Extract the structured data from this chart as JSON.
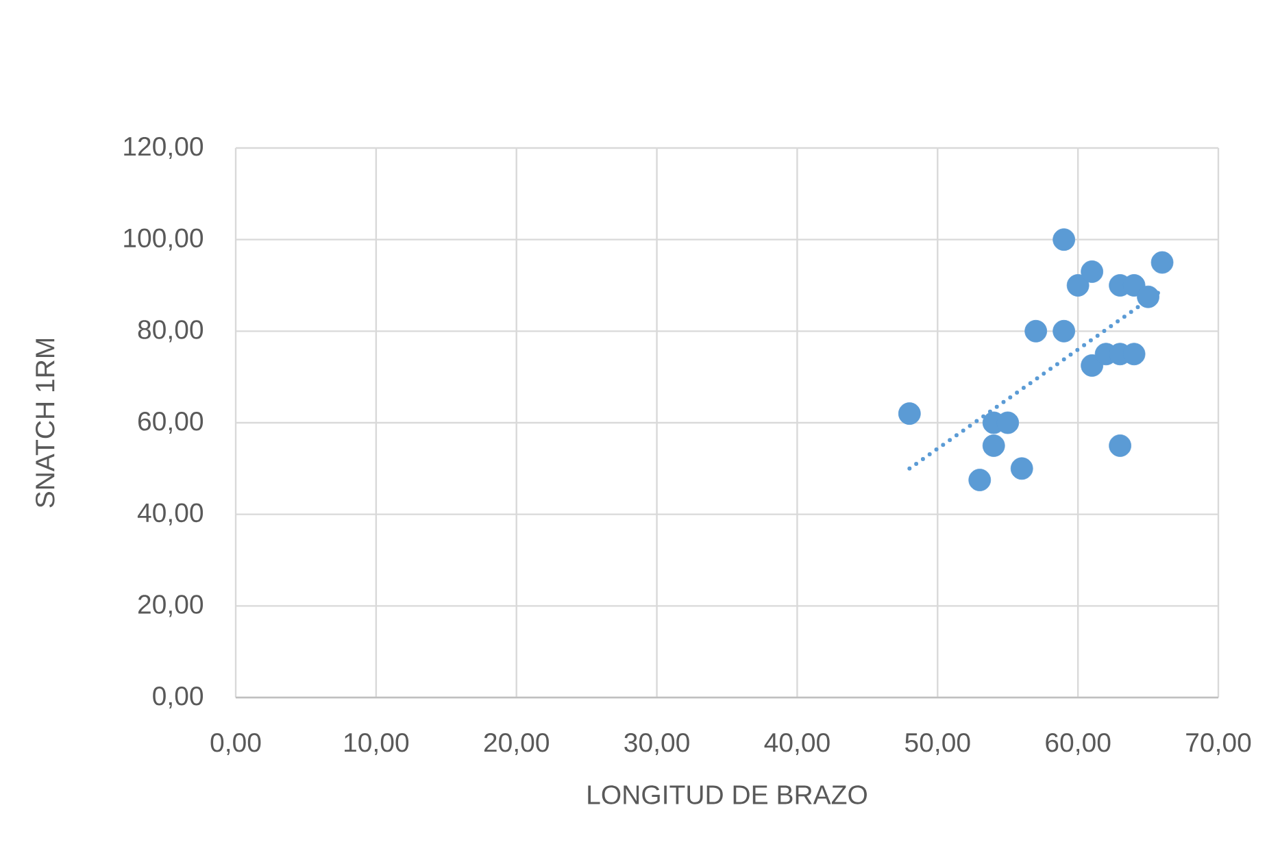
{
  "chart_data": {
    "type": "scatter",
    "xlabel": "LONGITUD DE BRAZO",
    "ylabel": "SNATCH 1RM",
    "series": [
      {
        "color": "#5b9bd5",
        "marker": "circle",
        "x": [
          48,
          53,
          54,
          54,
          55,
          56,
          57,
          59,
          59,
          60,
          61,
          61,
          62,
          63,
          63,
          63,
          64,
          64,
          65,
          66
        ],
        "values": [
          62,
          47.5,
          60,
          55,
          60,
          50,
          80,
          100,
          80,
          90,
          93,
          72.5,
          75,
          90,
          75,
          55,
          90,
          75,
          87.5,
          95
        ]
      },
      {
        "type": "line",
        "color": "#5b9bd5",
        "marker": "none",
        "line_style": "dotted",
        "x": [
          48,
          66
        ],
        "values": [
          50,
          89
        ]
      }
    ],
    "xlim": [
      0,
      70
    ],
    "ylim": [
      0,
      120
    ],
    "xticks": [
      {
        "value": 0,
        "label": "0,00"
      },
      {
        "value": 10,
        "label": "10,00"
      },
      {
        "value": 20,
        "label": "20,00"
      },
      {
        "value": 30,
        "label": "30,00"
      },
      {
        "value": 40,
        "label": "40,00"
      },
      {
        "value": 50,
        "label": "50,00"
      },
      {
        "value": 60,
        "label": "60,00"
      },
      {
        "value": 70,
        "label": "70,00"
      }
    ],
    "yticks": [
      {
        "value": 0,
        "label": "0,00"
      },
      {
        "value": 20,
        "label": "20,00"
      },
      {
        "value": 40,
        "label": "40,00"
      },
      {
        "value": 60,
        "label": "60,00"
      },
      {
        "value": 80,
        "label": "80,00"
      },
      {
        "value": 100,
        "label": "100,00"
      },
      {
        "value": 120,
        "label": "120,00"
      }
    ],
    "grid": true
  }
}
